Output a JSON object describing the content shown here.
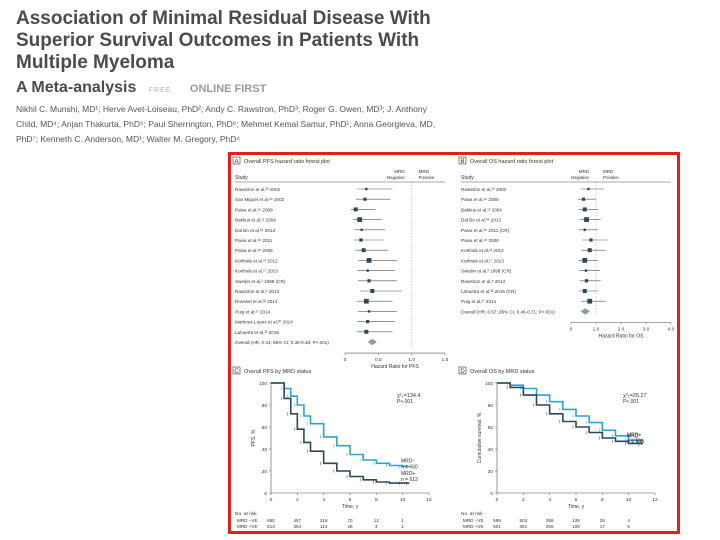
{
  "article": {
    "title": "Association of Minimal Residual Disease With Superior Survival Outcomes in Patients With Multiple Myeloma",
    "subtitle": "A Meta-analysis",
    "free_badge": "FREE",
    "online_first": "ONLINE FIRST",
    "authors": "Nikhil C. Munshi, MD¹; Herve Avet-Loiseau, PhD²; Andy C. Rawstron, PhD³; Roger G. Owen, MD³; J. Anthony Child, MD⁴; Anjan Thakurta, PhD⁵; Paul Sherrington, PhD⁶; Mehmet Kemal Samur, PhD¹; Anna Georgieva, MD, PhD⁷; Kenneth C. Anderson, MD¹; Walter M. Gregory, PhD⁴"
  },
  "colors": {
    "highlight_border": "#e0221b",
    "mrd_negative": "#2aa3d8",
    "mrd_positive": "#2f4858",
    "forest_marker": "#2f4858",
    "diamond": "#8aa0ab"
  },
  "chart_data": [
    {
      "type": "forest",
      "panel": "A",
      "title": "Overall PFS hazard ratio forest plot",
      "col_study": "Study",
      "col_favors_neg": "MRD Negative",
      "col_favors_pos": "MRD Positive",
      "xlabel": "Hazard Ratio for PFS",
      "xlim": [
        0,
        1.5
      ],
      "ticks": [
        "0",
        "0.5",
        "1.0",
        "1.5"
      ],
      "studies": [
        {
          "label": "Rawstron et al,²³ 2002",
          "hr": 0.32
        },
        {
          "label": "San Miguel et al,²⁹ 2002",
          "hr": 0.3
        },
        {
          "label": "Paiva et al,¹⁶ 2008",
          "hr": 0.16
        },
        {
          "label": "Bakkus et al,¹² 2004",
          "hr": 0.22
        },
        {
          "label": "Dal Bo et al,³⁴ 2013",
          "hr": 0.25
        },
        {
          "label": "Paiva et al,²⁶ 2011",
          "hr": 0.24
        },
        {
          "label": "Paiva et al,¹⁸ 2008",
          "hr": 0.28
        },
        {
          "label": "Korthals et al,¹³ 2012",
          "hr": 0.36
        },
        {
          "label": "Korthals et al,¹⁷ 2013",
          "hr": 0.34
        },
        {
          "label": "Swedin et al,³ 1998 (CR)",
          "hr": 0.36
        },
        {
          "label": "Rawstron et al,⁵ 2013",
          "hr": 0.41
        },
        {
          "label": "Roussel et al,³² 2014",
          "hr": 0.32
        },
        {
          "label": "Puig et al,²⁷ 2014",
          "hr": 0.36
        },
        {
          "label": "Martinez-Lopez et al,³⁰ 2014",
          "hr": 0.34
        },
        {
          "label": "Lahuerta et al,³³ 2015",
          "hr": 0.32
        }
      ],
      "overall": {
        "label": "Overall (HR, 0.41; 95% CI, 0.36-0.48; P<.001)",
        "hr": 0.41
      }
    },
    {
      "type": "forest",
      "panel": "B",
      "title": "Overall OS hazard ratio forest plot",
      "col_study": "Study",
      "col_favors_neg": "MRD Negative",
      "col_favors_pos": "MRD Positive",
      "xlabel": "Hazard Ratio for OS",
      "xlim": [
        0,
        4.0
      ],
      "ticks": [
        "0",
        "1.0",
        "2.0",
        "3.0",
        "4.0"
      ],
      "studies": [
        {
          "label": "Rawstron et al,²³ 2002",
          "hr": 0.7
        },
        {
          "label": "Paiva et al,¹⁶ 2008",
          "hr": 0.5
        },
        {
          "label": "Bakkus et al,¹² 2004",
          "hr": 0.55
        },
        {
          "label": "Dal Bo et al,³⁴ 2013",
          "hr": 0.62
        },
        {
          "label": "Paiva et al,²⁶ 2011 (CR)",
          "hr": 0.55
        },
        {
          "label": "Paiva et al,¹⁸ 2008",
          "hr": 0.8
        },
        {
          "label": "Korthals et al,¹³ 2012",
          "hr": 0.75
        },
        {
          "label": "Korthals et al,¹⁷ 2013",
          "hr": 0.55
        },
        {
          "label": "Swedin et al,³ 1998 (CR)",
          "hr": 0.6
        },
        {
          "label": "Rawstron et al,⁵ 2013",
          "hr": 0.62
        },
        {
          "label": "Lahuerta et al,³³ 2015 (CR)",
          "hr": 0.55
        },
        {
          "label": "Puig et al,²⁷ 2014",
          "hr": 0.75
        }
      ],
      "overall": {
        "label": "Overall (HR, 0.57; 95% CI, 0.46-0.71; P<.001)",
        "hr": 0.57
      }
    },
    {
      "type": "line",
      "panel": "C",
      "title": "Overall PFS by MRD status",
      "ylabel": "PFS, %",
      "xlabel": "Time, y",
      "xlim": [
        0,
        12
      ],
      "ylim": [
        0,
        100
      ],
      "xticks": [
        "0",
        "2",
        "4",
        "6",
        "8",
        "10",
        "12"
      ],
      "yticks": [
        "0",
        "20",
        "40",
        "60",
        "80",
        "100"
      ],
      "stat": "χ²₁=134.4",
      "pval": "P<.001",
      "series": [
        {
          "name": "MRD−",
          "n": "n = 660",
          "x": [
            0,
            1,
            1.5,
            2,
            2.5,
            3,
            4,
            5,
            6,
            7,
            8,
            9,
            10,
            10.5
          ],
          "y": [
            100,
            95,
            88,
            80,
            70,
            63,
            51,
            43,
            35,
            30,
            27,
            25,
            24,
            24
          ]
        },
        {
          "name": "MRD+",
          "n": "n = 613",
          "x": [
            0,
            1,
            1.5,
            2,
            2.5,
            3,
            4,
            5,
            6,
            7,
            8,
            9,
            10,
            10.5
          ],
          "y": [
            100,
            86,
            72,
            58,
            46,
            38,
            27,
            20,
            15,
            12,
            10,
            9,
            9,
            9
          ]
        }
      ],
      "risk_header": "No. at risk",
      "risk_rows": [
        {
          "label": "MRD −VE",
          "values": [
            "660",
            "457",
            "216",
            "70",
            "12",
            "1"
          ]
        },
        {
          "label": "MRD +VE",
          "values": [
            "613",
            "354",
            "114",
            "26",
            "4",
            "1"
          ]
        }
      ]
    },
    {
      "type": "line",
      "panel": "D",
      "title": "Overall OS by MRD status",
      "ylabel": "Cumulative survival, %",
      "xlabel": "Time, y",
      "xlim": [
        0,
        12
      ],
      "ylim": [
        0,
        100
      ],
      "xticks": [
        "0",
        "2",
        "4",
        "6",
        "8",
        "10",
        "12"
      ],
      "yticks": [
        "0",
        "20",
        "40",
        "60",
        "80",
        "100"
      ],
      "stat": "χ²₁=25.27",
      "pval": "P<.001",
      "series": [
        {
          "name": "MRD−",
          "n": "n = 599",
          "x": [
            0,
            1,
            2,
            3,
            4,
            5,
            6,
            7,
            8,
            9,
            10,
            11
          ],
          "y": [
            100,
            98,
            95,
            89,
            83,
            76,
            70,
            64,
            57,
            52,
            48,
            47
          ]
        },
        {
          "name": "MRD+",
          "n": "n = 501",
          "x": [
            0,
            1,
            2,
            3,
            4,
            5,
            6,
            7,
            8,
            9,
            10,
            11
          ],
          "y": [
            100,
            96,
            89,
            80,
            72,
            65,
            60,
            55,
            50,
            47,
            45,
            44
          ]
        }
      ],
      "risk_header": "No. at risk",
      "risk_rows": [
        {
          "label": "MRD −VE",
          "values": [
            "599",
            "503",
            "359",
            "139",
            "26",
            "4"
          ]
        },
        {
          "label": "MRD +VE",
          "values": [
            "501",
            "391",
            "256",
            "106",
            "17",
            "5"
          ]
        }
      ]
    }
  ]
}
